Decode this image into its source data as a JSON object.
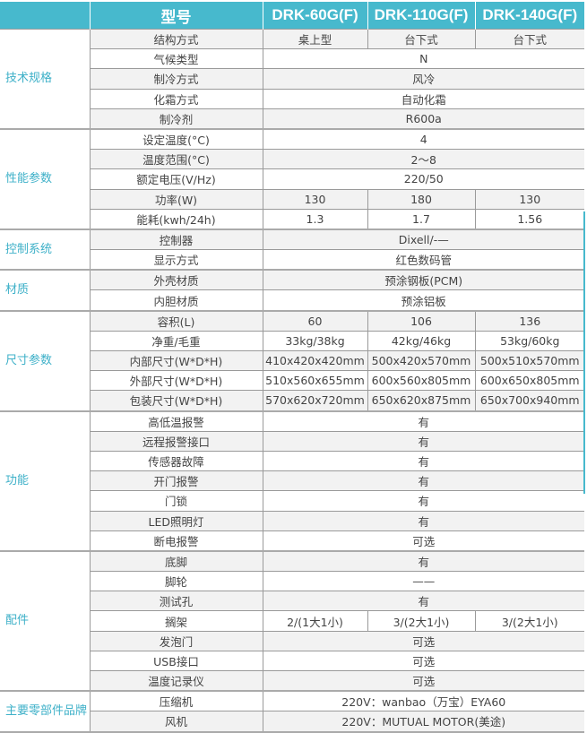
{
  "header": {
    "label": "型号",
    "models": [
      "DRK-60G(F)",
      "DRK-110G(F)",
      "DRK-140G(F)"
    ]
  },
  "colors": {
    "header_bg": "#47b9cd",
    "category_text": "#3db0c8"
  },
  "groups": [
    {
      "category": "技术规格",
      "rows": [
        {
          "label": "结构方式",
          "values": [
            "桌上型",
            "台下式",
            "台下式"
          ]
        },
        {
          "label": "气候类型",
          "values": [
            "N"
          ]
        },
        {
          "label": "制冷方式",
          "values": [
            "风冷"
          ]
        },
        {
          "label": "化霜方式",
          "values": [
            "自动化霜"
          ]
        },
        {
          "label": "制冷剂",
          "values": [
            "R600a"
          ]
        }
      ]
    },
    {
      "category": "性能参数",
      "rows": [
        {
          "label": "设定温度(°C)",
          "values": [
            "4"
          ]
        },
        {
          "label": "温度范围(°C)",
          "values": [
            "2～8"
          ]
        },
        {
          "label": "额定电压(V/Hz)",
          "values": [
            "220/50"
          ]
        },
        {
          "label": "功率(W)",
          "values": [
            "130",
            "180",
            "130"
          ]
        },
        {
          "label": "能耗(kwh/24h)",
          "values": [
            "1.3",
            "1.7",
            "1.56"
          ]
        }
      ]
    },
    {
      "category": "控制系统",
      "rows": [
        {
          "label": "控制器",
          "values": [
            "Dixell/-—"
          ]
        },
        {
          "label": "显示方式",
          "values": [
            "红色数码管"
          ]
        }
      ]
    },
    {
      "category": "材质",
      "rows": [
        {
          "label": "外壳材质",
          "values": [
            "预涂钢板(PCM)"
          ]
        },
        {
          "label": "内胆材质",
          "values": [
            "预涂铝板"
          ]
        }
      ]
    },
    {
      "category": "尺寸参数",
      "rows": [
        {
          "label": "容积(L)",
          "values": [
            "60",
            "106",
            "136"
          ]
        },
        {
          "label": "净重/毛重",
          "values": [
            "33kg/38kg",
            "42kg/46kg",
            "53kg/60kg"
          ]
        },
        {
          "label": "内部尺寸(W*D*H)",
          "values": [
            "410x420x420mm",
            "500x420x570mm",
            "500x510x570mm"
          ]
        },
        {
          "label": "外部尺寸(W*D*H)",
          "values": [
            "510x560x655mm",
            "600x560x805mm",
            "600x650x805mm"
          ]
        },
        {
          "label": "包装尺寸(W*D*H)",
          "values": [
            "570x620x720mm",
            "650x620x875mm",
            "650x700x940mm"
          ]
        }
      ]
    },
    {
      "category": "功能",
      "rows": [
        {
          "label": "高低温报警",
          "values": [
            "有"
          ]
        },
        {
          "label": "远程报警接口",
          "values": [
            "有"
          ]
        },
        {
          "label": "传感器故障",
          "values": [
            "有"
          ]
        },
        {
          "label": "开门报警",
          "values": [
            "有"
          ]
        },
        {
          "label": "门锁",
          "values": [
            "有"
          ]
        },
        {
          "label": "LED照明灯",
          "values": [
            "有"
          ]
        },
        {
          "label": "断电报警",
          "values": [
            "可选"
          ]
        }
      ]
    },
    {
      "category": "配件",
      "rows": [
        {
          "label": "底脚",
          "values": [
            "有"
          ]
        },
        {
          "label": "脚轮",
          "values": [
            "——"
          ]
        },
        {
          "label": "测试孔",
          "values": [
            "有"
          ]
        },
        {
          "label": "搁架",
          "values": [
            "2/(1大1小)",
            "3/(2大1小)",
            "3/(2大1小)"
          ]
        },
        {
          "label": "发泡门",
          "values": [
            "可选"
          ]
        },
        {
          "label": "USB接口",
          "values": [
            "可选"
          ]
        },
        {
          "label": "温度记录仪",
          "values": [
            "可选"
          ]
        }
      ]
    },
    {
      "category": "主要零部件品牌",
      "rows": [
        {
          "label": "压缩机",
          "values": [
            "220V：wanbao（万宝）EYA60"
          ]
        },
        {
          "label": "风机",
          "values": [
            "220V：MUTUAL MOTOR(美途)"
          ]
        }
      ]
    }
  ]
}
